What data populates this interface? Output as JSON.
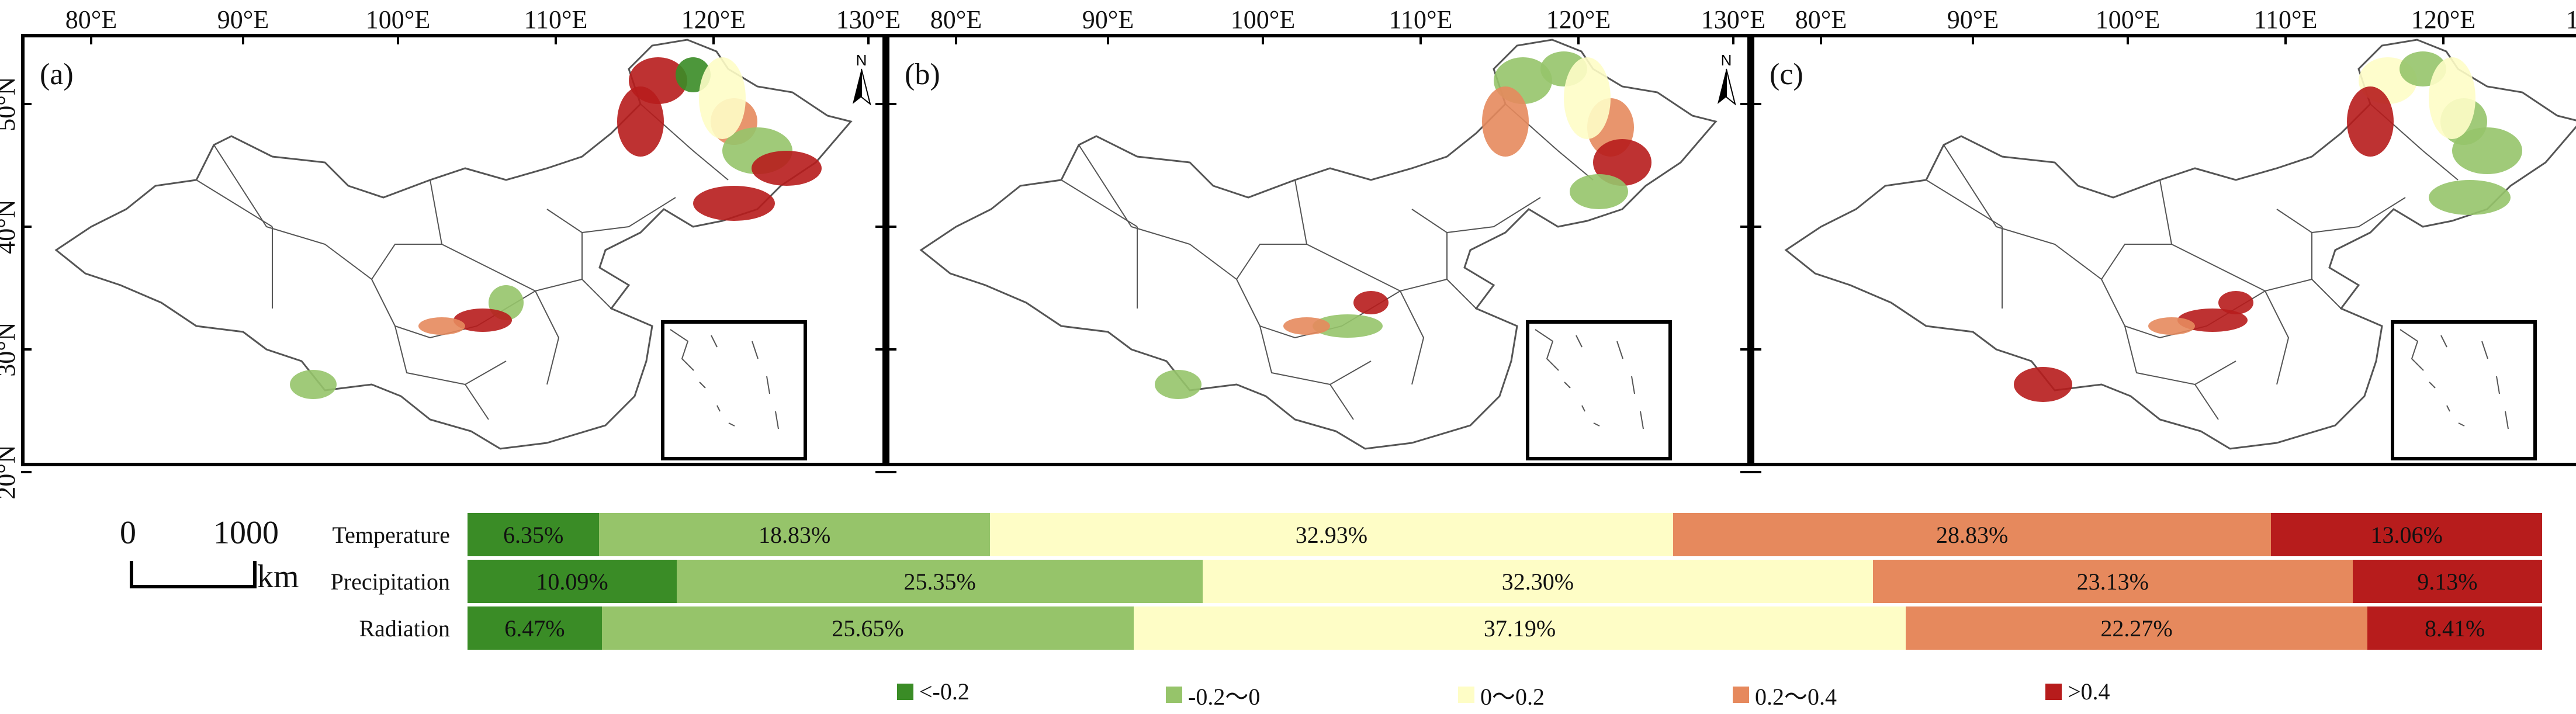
{
  "map": {
    "lon_labels": [
      "80°E",
      "90°E",
      "100°E",
      "110°E",
      "120°E",
      "130°E"
    ],
    "lat_labels": [
      "50°N",
      "40°N",
      "30°N",
      "20°N"
    ],
    "panels": [
      {
        "label": "(a)",
        "lat_side": "left"
      },
      {
        "label": "(b)",
        "lat_side": "none"
      },
      {
        "label": "(c)",
        "lat_side": "right"
      }
    ],
    "north_symbol": "N"
  },
  "scale_bar": {
    "zero": "0",
    "max": "1000",
    "unit": "km"
  },
  "colors": {
    "lt_neg02": "#3a8c26",
    "neg02_0": "#96c46a",
    "0_02": "#fefdc6",
    "02_04": "#e6895d",
    "gt_04": "#b71c1c",
    "boundary": "#555555"
  },
  "bars": [
    {
      "name": "Temperature",
      "values": [
        6.35,
        18.83,
        32.93,
        28.83,
        13.06
      ],
      "labels": [
        "6.35%",
        "18.83%",
        "32.93%",
        "28.83%",
        "13.06%"
      ]
    },
    {
      "name": "Precipitation",
      "values": [
        10.09,
        25.35,
        32.3,
        23.13,
        9.13
      ],
      "labels": [
        "10.09%",
        "25.35%",
        "32.30%",
        "23.13%",
        "9.13%"
      ]
    },
    {
      "name": "Radiation",
      "values": [
        6.47,
        25.65,
        37.19,
        22.27,
        8.41
      ],
      "labels": [
        "6.47%",
        "25.65%",
        "37.19%",
        "22.27%",
        "8.41%"
      ]
    }
  ],
  "legend": [
    {
      "label": "<-0.2",
      "color_key": "lt_neg02"
    },
    {
      "label": "-0.2～0",
      "color_key": "neg02_0"
    },
    {
      "label": "0～0.2",
      "color_key": "0_02"
    },
    {
      "label": "0.2～0.4",
      "color_key": "02_04"
    },
    {
      "label": ">0.4",
      "color_key": "gt_04"
    }
  ]
}
